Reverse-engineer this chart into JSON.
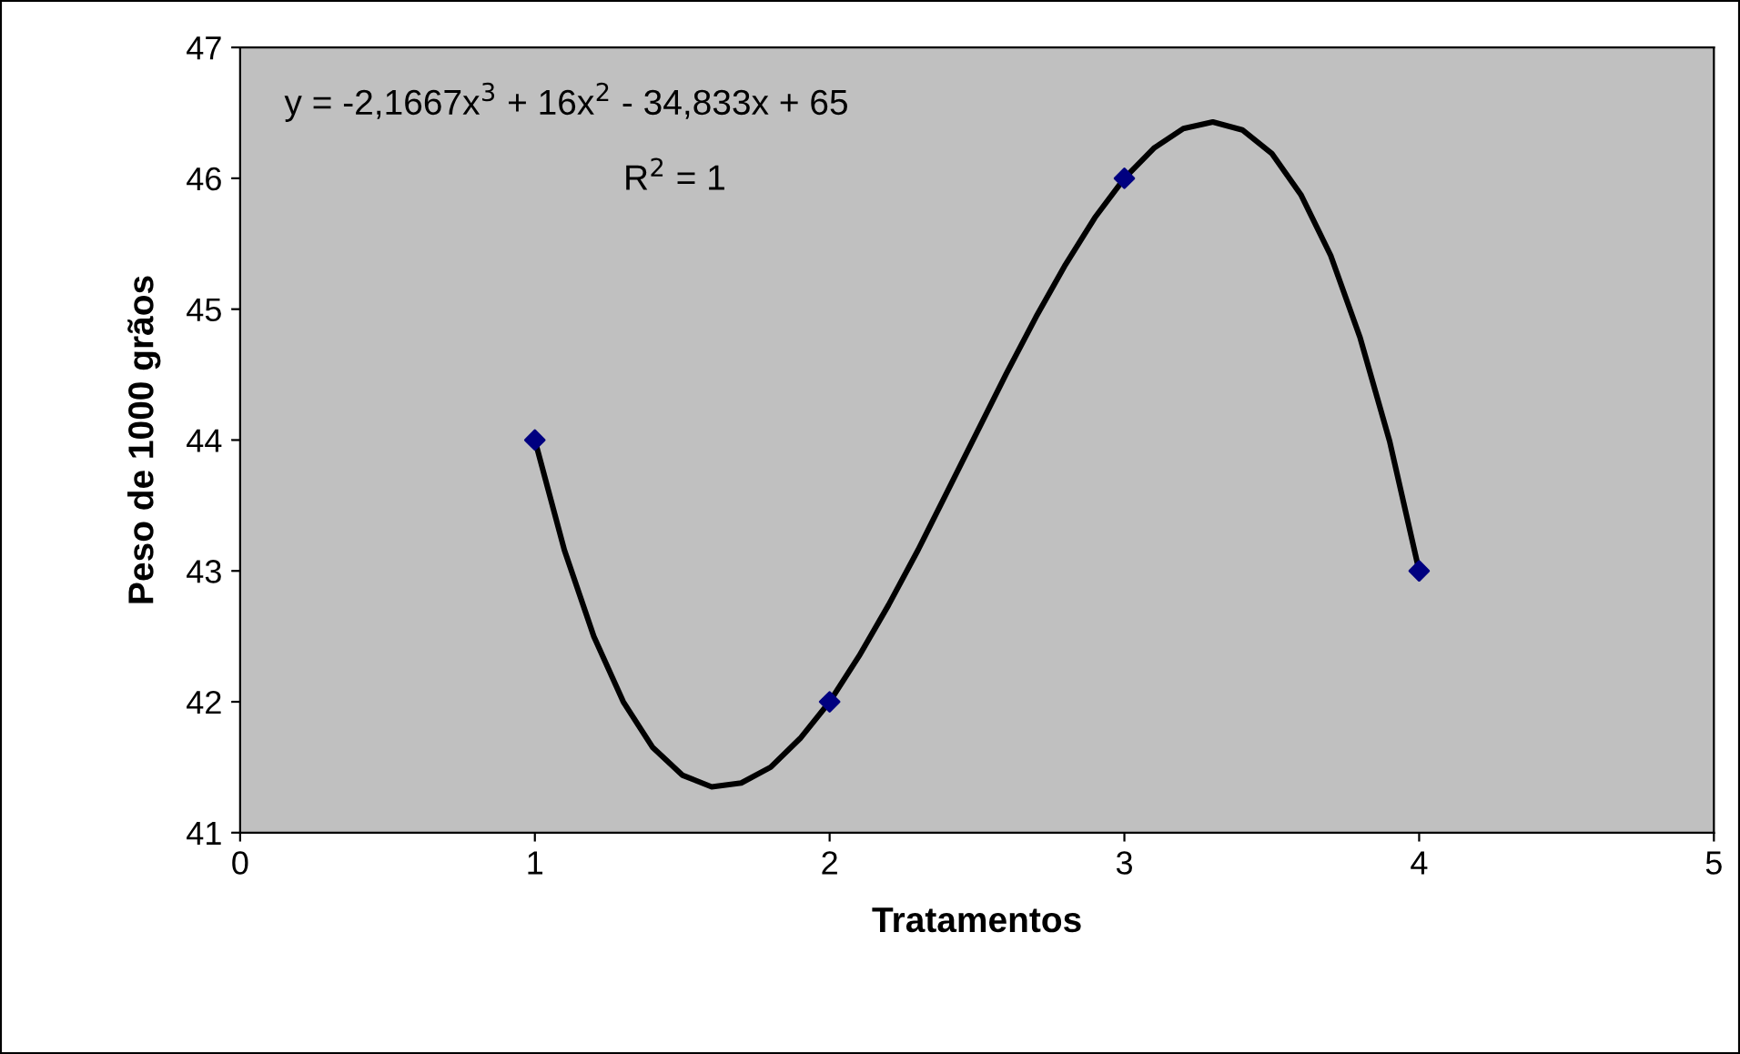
{
  "chart_data": {
    "type": "scatter",
    "xlabel": "Tratamentos",
    "ylabel": "Peso de 1000 grãos",
    "annotations": [
      "y = -2,1667x$^{3}$ + 16x$^{2}$ - 34,833x + 65",
      "R$^{2}$ = 1"
    ],
    "xlim": [
      0,
      5
    ],
    "xticks": [
      0,
      1,
      2,
      3,
      4,
      5
    ],
    "ylim": [
      41,
      47
    ],
    "yticks": [
      41,
      42,
      43,
      44,
      45,
      46,
      47
    ],
    "grid": false,
    "series": [
      {
        "color": "#000080",
        "marker": "diamond",
        "x": [
          1,
          2,
          3,
          4
        ],
        "values": [
          44,
          42,
          46,
          43
        ]
      },
      {
        "type": "line",
        "color": "#000000",
        "marker": "none",
        "line_style": "solid",
        "x": [
          1,
          1.1,
          1.2,
          1.3,
          1.4,
          1.5,
          1.6,
          1.7,
          1.8,
          1.9,
          2,
          2.1,
          2.2,
          2.3,
          2.4,
          2.5,
          2.6,
          2.7,
          2.8,
          2.9,
          3,
          3.1,
          3.2,
          3.3,
          3.4,
          3.5,
          3.6,
          3.7,
          3.8,
          3.9,
          4
        ],
        "values": [
          44,
          43.16,
          42.5,
          42.0,
          41.65,
          41.44,
          41.35,
          41.38,
          41.5,
          41.72,
          42,
          42.35,
          42.74,
          43.16,
          43.61,
          44.06,
          44.51,
          44.94,
          45.34,
          45.7,
          46,
          46.23,
          46.38,
          46.43,
          46.37,
          46.19,
          45.87,
          45.41,
          44.78,
          43.99,
          43
        ]
      }
    ]
  }
}
